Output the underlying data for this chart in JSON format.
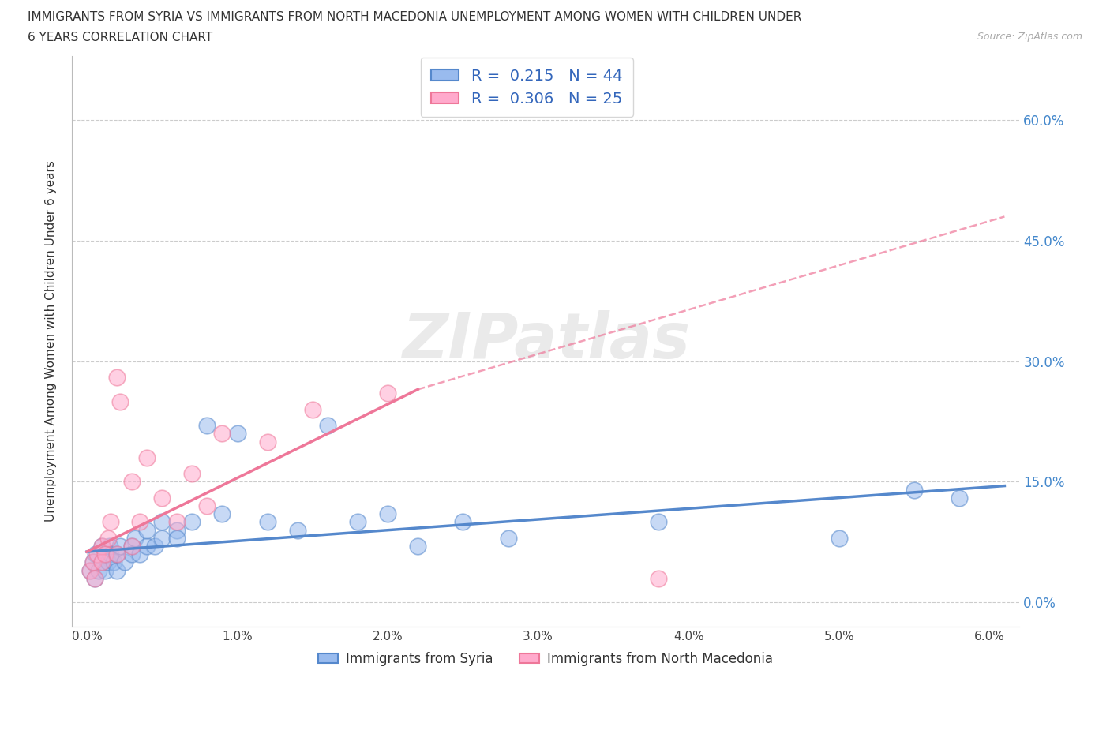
{
  "title_line1": "IMMIGRANTS FROM SYRIA VS IMMIGRANTS FROM NORTH MACEDONIA UNEMPLOYMENT AMONG WOMEN WITH CHILDREN UNDER",
  "title_line2": "6 YEARS CORRELATION CHART",
  "source": "Source: ZipAtlas.com",
  "ylabel": "Unemployment Among Women with Children Under 6 years",
  "xlim": [
    -0.001,
    0.062
  ],
  "ylim": [
    -0.03,
    0.68
  ],
  "xticks": [
    0.0,
    0.01,
    0.02,
    0.03,
    0.04,
    0.05,
    0.06
  ],
  "xticklabels": [
    "0.0%",
    "1.0%",
    "2.0%",
    "3.0%",
    "4.0%",
    "5.0%",
    "6.0%"
  ],
  "yticks": [
    0.0,
    0.15,
    0.3,
    0.45,
    0.6
  ],
  "yticklabels": [
    "0.0%",
    "15.0%",
    "30.0%",
    "45.0%",
    "60.0%"
  ],
  "syria_color": "#5588CC",
  "syria_color_light": "#99BBEE",
  "macedonia_color": "#EE7799",
  "macedonia_color_light": "#FFAACC",
  "syria_R": "0.215",
  "syria_N": "44",
  "macedonia_R": "0.306",
  "macedonia_N": "25",
  "legend_label_syria": "Immigrants from Syria",
  "legend_label_macedonia": "Immigrants from North Macedonia",
  "watermark": "ZIPatlas",
  "syria_scatter_x": [
    0.0002,
    0.0004,
    0.0005,
    0.0006,
    0.0008,
    0.001,
    0.001,
    0.0012,
    0.0013,
    0.0014,
    0.0015,
    0.0016,
    0.0018,
    0.002,
    0.002,
    0.0022,
    0.0025,
    0.003,
    0.003,
    0.0032,
    0.0035,
    0.004,
    0.004,
    0.0045,
    0.005,
    0.005,
    0.006,
    0.006,
    0.007,
    0.008,
    0.009,
    0.01,
    0.012,
    0.014,
    0.016,
    0.018,
    0.02,
    0.022,
    0.025,
    0.028,
    0.038,
    0.05,
    0.055,
    0.058
  ],
  "syria_scatter_y": [
    0.04,
    0.05,
    0.03,
    0.06,
    0.04,
    0.05,
    0.07,
    0.04,
    0.06,
    0.05,
    0.07,
    0.06,
    0.05,
    0.06,
    0.04,
    0.07,
    0.05,
    0.07,
    0.06,
    0.08,
    0.06,
    0.07,
    0.09,
    0.07,
    0.08,
    0.1,
    0.09,
    0.08,
    0.1,
    0.22,
    0.11,
    0.21,
    0.1,
    0.09,
    0.22,
    0.1,
    0.11,
    0.07,
    0.1,
    0.08,
    0.1,
    0.08,
    0.14,
    0.13
  ],
  "macedonia_scatter_x": [
    0.0002,
    0.0004,
    0.0005,
    0.0007,
    0.001,
    0.001,
    0.0012,
    0.0014,
    0.0016,
    0.002,
    0.002,
    0.0022,
    0.003,
    0.003,
    0.0035,
    0.004,
    0.005,
    0.006,
    0.007,
    0.008,
    0.009,
    0.012,
    0.015,
    0.02,
    0.038
  ],
  "macedonia_scatter_y": [
    0.04,
    0.05,
    0.03,
    0.06,
    0.05,
    0.07,
    0.06,
    0.08,
    0.1,
    0.06,
    0.28,
    0.25,
    0.07,
    0.15,
    0.1,
    0.18,
    0.13,
    0.1,
    0.16,
    0.12,
    0.21,
    0.2,
    0.24,
    0.26,
    0.03
  ],
  "syria_trend_x0": 0.0,
  "syria_trend_x1": 0.061,
  "syria_trend_y0": 0.063,
  "syria_trend_y1": 0.145,
  "mac_trend_solid_x0": 0.0,
  "mac_trend_solid_x1": 0.022,
  "mac_trend_solid_y0": 0.063,
  "mac_trend_solid_y1": 0.265,
  "mac_trend_dash_x0": 0.022,
  "mac_trend_dash_x1": 0.061,
  "mac_trend_dash_y0": 0.265,
  "mac_trend_dash_y1": 0.48
}
